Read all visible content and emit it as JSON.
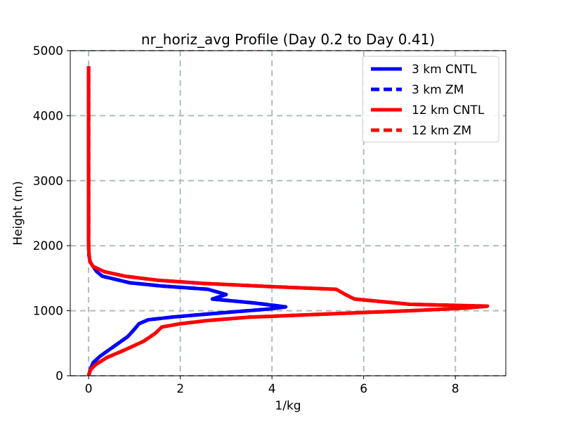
{
  "chart_data": {
    "type": "line",
    "title": "nr_horiz_avg Profile (Day 0.2 to Day 0.41)",
    "xlabel": "1/kg",
    "ylabel": "Height (m)",
    "xlim": [
      -0.4,
      9.1
    ],
    "ylim": [
      0,
      5000
    ],
    "xticks": [
      0,
      2,
      4,
      6,
      8
    ],
    "yticks": [
      0,
      1000,
      2000,
      3000,
      4000,
      5000
    ],
    "grid": true,
    "grid_style": "dashed",
    "legend_position": "top-right",
    "series": [
      {
        "name": "3 km CNTL",
        "color": "#0000ff",
        "dash": "solid",
        "points": [
          [
            0,
            0
          ],
          [
            0.02,
            50
          ],
          [
            0.05,
            120
          ],
          [
            0.1,
            200
          ],
          [
            0.25,
            300
          ],
          [
            0.45,
            400
          ],
          [
            0.65,
            500
          ],
          [
            0.85,
            600
          ],
          [
            0.98,
            700
          ],
          [
            1.1,
            800
          ],
          [
            1.3,
            860
          ],
          [
            1.8,
            900
          ],
          [
            2.6,
            950
          ],
          [
            3.3,
            990
          ],
          [
            4.0,
            1030
          ],
          [
            4.3,
            1060
          ],
          [
            3.6,
            1120
          ],
          [
            2.7,
            1180
          ],
          [
            3.0,
            1250
          ],
          [
            2.6,
            1330
          ],
          [
            1.6,
            1380
          ],
          [
            0.9,
            1430
          ],
          [
            0.6,
            1480
          ],
          [
            0.3,
            1530
          ],
          [
            0.18,
            1600
          ],
          [
            0.08,
            1700
          ],
          [
            0.03,
            1760
          ],
          [
            0.01,
            1850
          ],
          [
            0.0,
            2000
          ],
          [
            0.0,
            2500
          ],
          [
            0.0,
            3000
          ],
          [
            0.0,
            3500
          ],
          [
            0.0,
            4000
          ],
          [
            0.0,
            4500
          ],
          [
            0.0,
            4760
          ]
        ]
      },
      {
        "name": "3 km ZM",
        "color": "#0000ff",
        "dash": "dashed",
        "points": [
          [
            0,
            0
          ],
          [
            0.02,
            50
          ],
          [
            0.05,
            120
          ],
          [
            0.1,
            200
          ],
          [
            0.25,
            300
          ],
          [
            0.45,
            400
          ],
          [
            0.65,
            500
          ],
          [
            0.85,
            600
          ],
          [
            0.98,
            700
          ],
          [
            1.1,
            800
          ],
          [
            1.3,
            860
          ],
          [
            1.8,
            900
          ],
          [
            2.6,
            950
          ],
          [
            3.3,
            990
          ],
          [
            4.0,
            1030
          ],
          [
            4.3,
            1060
          ],
          [
            3.6,
            1120
          ],
          [
            2.7,
            1180
          ],
          [
            3.0,
            1250
          ],
          [
            2.6,
            1330
          ],
          [
            1.6,
            1380
          ],
          [
            0.9,
            1430
          ],
          [
            0.6,
            1480
          ],
          [
            0.3,
            1530
          ],
          [
            0.18,
            1600
          ],
          [
            0.08,
            1700
          ],
          [
            0.03,
            1760
          ],
          [
            0.01,
            1850
          ],
          [
            0.0,
            2000
          ],
          [
            0.0,
            2500
          ],
          [
            0.0,
            3000
          ],
          [
            0.0,
            3500
          ],
          [
            0.0,
            4000
          ],
          [
            0.0,
            4500
          ],
          [
            0.0,
            4760
          ]
        ]
      },
      {
        "name": "12 km CNTL",
        "color": "#ff0000",
        "dash": "solid",
        "points": [
          [
            0,
            0
          ],
          [
            0.02,
            50
          ],
          [
            0.05,
            100
          ],
          [
            0.15,
            170
          ],
          [
            0.4,
            280
          ],
          [
            0.8,
            400
          ],
          [
            1.2,
            530
          ],
          [
            1.45,
            650
          ],
          [
            1.6,
            750
          ],
          [
            2.0,
            800
          ],
          [
            2.6,
            850
          ],
          [
            3.5,
            900
          ],
          [
            5.2,
            950
          ],
          [
            7.0,
            1000
          ],
          [
            8.2,
            1040
          ],
          [
            8.7,
            1070
          ],
          [
            7.0,
            1100
          ],
          [
            5.8,
            1180
          ],
          [
            5.6,
            1250
          ],
          [
            5.4,
            1330
          ],
          [
            4.0,
            1370
          ],
          [
            2.5,
            1420
          ],
          [
            1.5,
            1470
          ],
          [
            0.8,
            1530
          ],
          [
            0.35,
            1600
          ],
          [
            0.1,
            1680
          ],
          [
            0.03,
            1750
          ],
          [
            0.01,
            1850
          ],
          [
            0.0,
            2000
          ],
          [
            0.0,
            2500
          ],
          [
            0.0,
            3000
          ],
          [
            0.0,
            3500
          ],
          [
            0.0,
            4000
          ],
          [
            0.0,
            4500
          ],
          [
            0.0,
            4760
          ]
        ]
      },
      {
        "name": "12 km ZM",
        "color": "#ff0000",
        "dash": "dashed",
        "points": [
          [
            0,
            0
          ],
          [
            0.02,
            50
          ],
          [
            0.05,
            100
          ],
          [
            0.15,
            170
          ],
          [
            0.4,
            280
          ],
          [
            0.8,
            400
          ],
          [
            1.2,
            530
          ],
          [
            1.45,
            650
          ],
          [
            1.6,
            750
          ],
          [
            2.0,
            800
          ],
          [
            2.6,
            850
          ],
          [
            3.5,
            900
          ],
          [
            5.2,
            950
          ],
          [
            7.0,
            1000
          ],
          [
            8.2,
            1040
          ],
          [
            8.7,
            1070
          ],
          [
            7.0,
            1100
          ],
          [
            5.8,
            1180
          ],
          [
            5.6,
            1250
          ],
          [
            5.4,
            1330
          ],
          [
            4.0,
            1370
          ],
          [
            2.5,
            1420
          ],
          [
            1.5,
            1470
          ],
          [
            0.8,
            1530
          ],
          [
            0.35,
            1600
          ],
          [
            0.1,
            1680
          ],
          [
            0.03,
            1750
          ],
          [
            0.01,
            1850
          ],
          [
            0.0,
            2000
          ],
          [
            0.0,
            2500
          ],
          [
            0.0,
            3000
          ],
          [
            0.0,
            3500
          ],
          [
            0.0,
            4000
          ],
          [
            0.0,
            4500
          ],
          [
            0.0,
            4760
          ]
        ]
      }
    ]
  }
}
